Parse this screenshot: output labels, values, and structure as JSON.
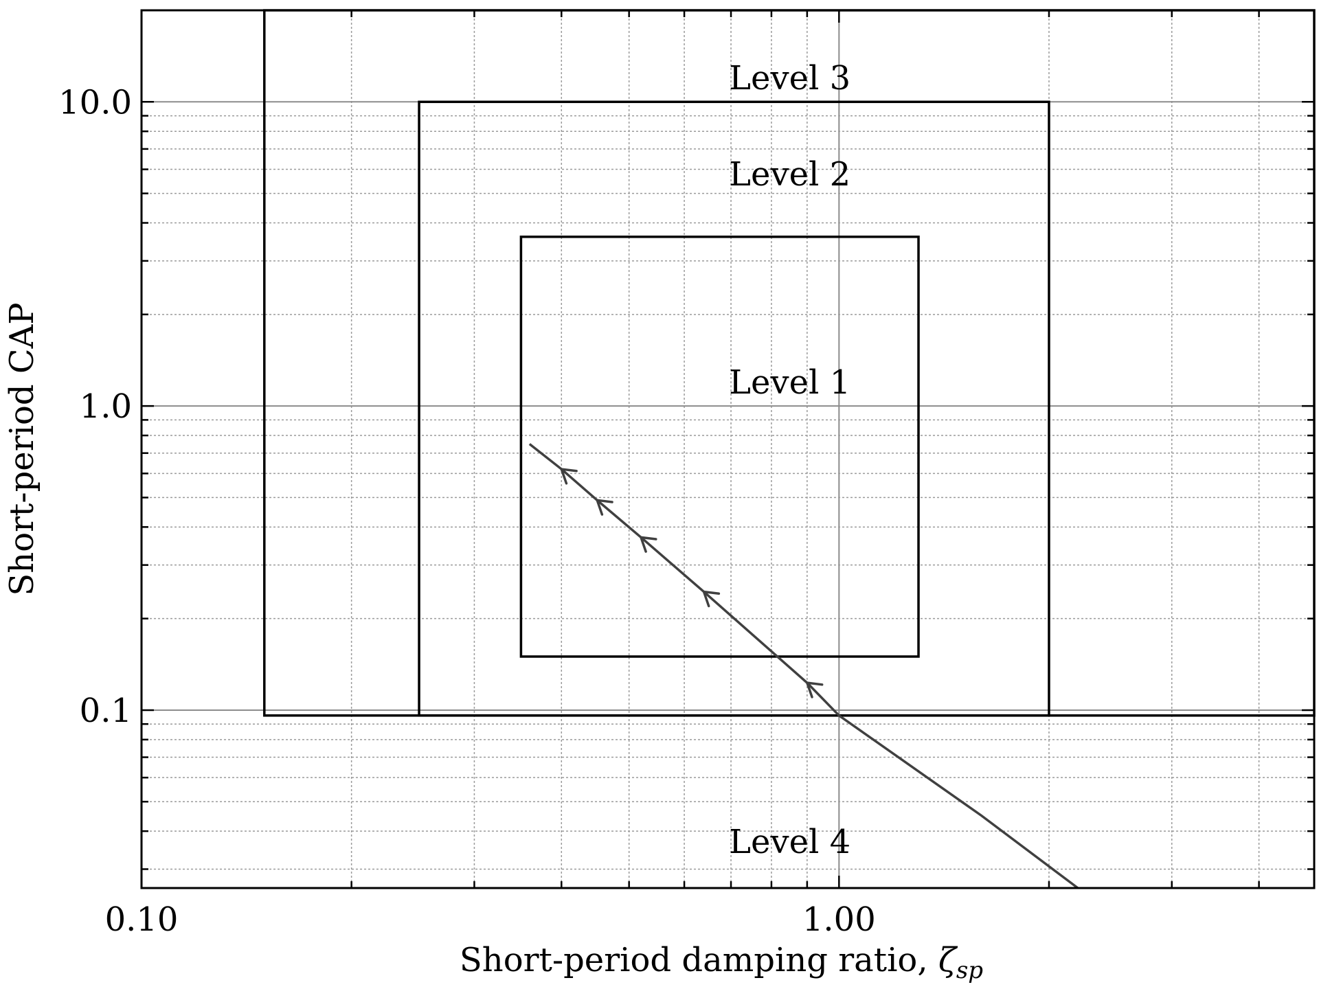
{
  "chart_data": {
    "type": "line",
    "title": "",
    "xlabel": "Short-period damping ratio, ",
    "xlabel_symbol": "ζ",
    "xlabel_subscript": "sp",
    "ylabel": "Short-period CAP",
    "x_scale": "log",
    "y_scale": "log",
    "xlim": [
      0.1,
      4.8
    ],
    "ylim": [
      0.026,
      20
    ],
    "x_major_ticks": [
      0.1,
      1.0
    ],
    "x_tick_labels": [
      "0.10",
      "1.00"
    ],
    "y_major_ticks": [
      0.1,
      1.0,
      10.0
    ],
    "y_tick_labels": [
      "0.1",
      "1.0",
      "10.0"
    ],
    "grid": true,
    "regions": [
      {
        "label": "Level 1",
        "zeta": [
          0.35,
          1.3
        ],
        "cap": [
          0.15,
          3.6
        ],
        "label_at": [
          0.85,
          1.2
        ]
      },
      {
        "label": "Level 2",
        "zeta": [
          0.25,
          2.0
        ],
        "cap": [
          0.096,
          10.0
        ],
        "label_at": [
          0.85,
          5.8
        ]
      },
      {
        "label": "Level 3",
        "zeta": [
          0.15,
          4.8
        ],
        "cap": [
          0.096,
          20
        ],
        "label_at": [
          0.85,
          12.0
        ]
      },
      {
        "label": "Level 4",
        "label_at": [
          0.85,
          0.037
        ]
      }
    ],
    "series": [
      {
        "x": [
          0.36,
          0.4,
          0.45,
          0.52,
          0.64,
          0.9,
          1.0,
          1.6,
          2.2
        ],
        "y": [
          0.75,
          0.62,
          0.49,
          0.37,
          0.245,
          0.123,
          0.096,
          0.045,
          0.026
        ],
        "arrows_at": [
          0.4,
          0.45,
          0.52,
          0.64,
          0.9
        ],
        "direction": "decreasing-x"
      }
    ]
  }
}
